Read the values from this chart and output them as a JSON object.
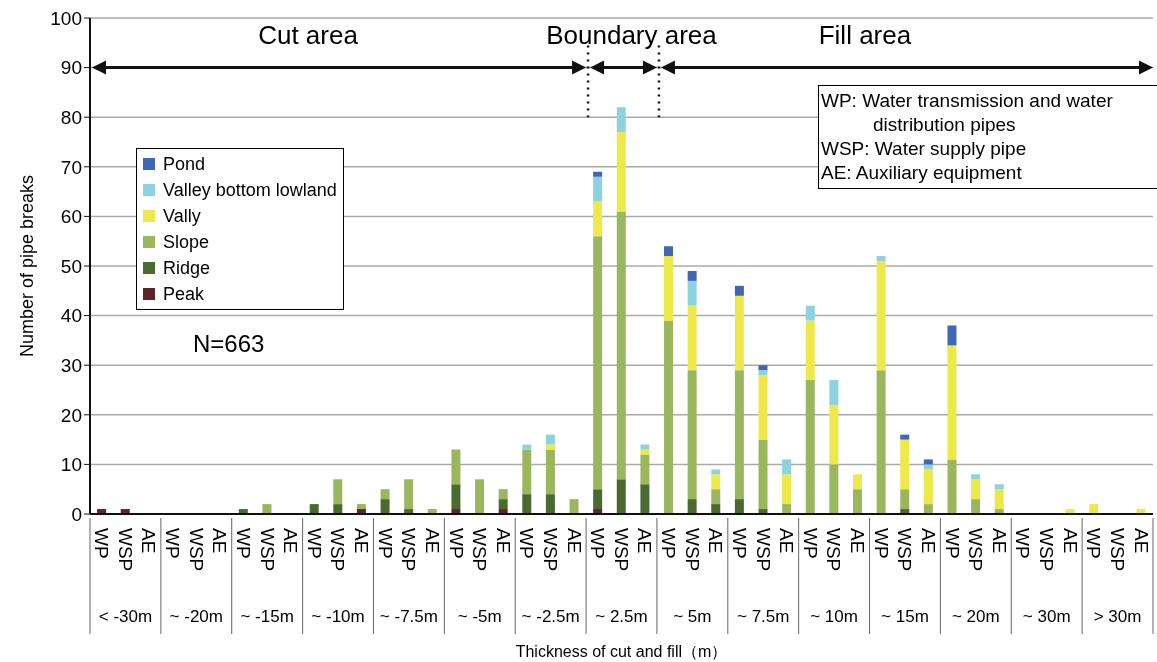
{
  "chart_data": {
    "type": "bar",
    "stacked": true,
    "ylabel": "Number of pipe breaks",
    "xlabel": "Thickness of cut and fill（m）",
    "categories": [
      "WP",
      "WSP",
      "AE",
      "WP",
      "WSP",
      "AE",
      "WP",
      "WSP",
      "AE",
      "WP",
      "WSP",
      "AE",
      "WP",
      "WSP",
      "AE",
      "WP",
      "WSP",
      "AE",
      "WP",
      "WSP",
      "AE",
      "WP",
      "WSP",
      "AE",
      "WP",
      "WSP",
      "AE",
      "WP",
      "WSP",
      "AE",
      "WP",
      "WSP",
      "AE",
      "WP",
      "WSP",
      "AE",
      "WP",
      "WSP",
      "AE",
      "WP",
      "WSP",
      "AE",
      "WP",
      "WSP",
      "AE"
    ],
    "series": [
      {
        "name": "Peak",
        "color": "#5e2427",
        "values": [
          1,
          1,
          0,
          0,
          0,
          0,
          0,
          0,
          0,
          0,
          0,
          1,
          0,
          0,
          0,
          1,
          0,
          1,
          0,
          0,
          0,
          1,
          0,
          0,
          0,
          0,
          0,
          0,
          0,
          0,
          0,
          0,
          0,
          0,
          0,
          0,
          0,
          0,
          0,
          0,
          0,
          0,
          0,
          0,
          0
        ]
      },
      {
        "name": "Ridge",
        "color": "#4a6a30",
        "values": [
          0,
          0,
          0,
          0,
          0,
          0,
          1,
          0,
          0,
          2,
          2,
          0,
          3,
          1,
          0,
          5,
          0,
          2,
          4,
          4,
          0,
          4,
          7,
          6,
          0,
          3,
          2,
          3,
          1,
          0,
          0,
          0,
          0,
          0,
          1,
          0,
          0,
          0,
          0,
          0,
          0,
          0,
          0,
          0,
          0
        ]
      },
      {
        "name": "Slope",
        "color": "#9bb75d",
        "values": [
          0,
          0,
          0,
          0,
          0,
          0,
          0,
          2,
          0,
          0,
          5,
          1,
          2,
          6,
          1,
          7,
          7,
          2,
          9,
          9,
          3,
          51,
          54,
          6,
          39,
          26,
          3,
          26,
          14,
          2,
          27,
          10,
          5,
          29,
          4,
          2,
          11,
          3,
          1,
          0,
          0,
          0,
          0,
          0,
          0
        ]
      },
      {
        "name": "Vally",
        "color": "#ede94a",
        "values": [
          0,
          0,
          0,
          0,
          0,
          0,
          0,
          0,
          0,
          0,
          0,
          0,
          0,
          0,
          0,
          0,
          0,
          0,
          0,
          1,
          0,
          7,
          16,
          1,
          13,
          13,
          3,
          15,
          13,
          6,
          12,
          12,
          3,
          22,
          10,
          7,
          23,
          4,
          4,
          0,
          0,
          1,
          2,
          0,
          1
        ]
      },
      {
        "name": "Valley bottom lowland",
        "color": "#8dd3df",
        "values": [
          0,
          0,
          0,
          0,
          0,
          0,
          0,
          0,
          0,
          0,
          0,
          0,
          0,
          0,
          0,
          0,
          0,
          0,
          1,
          2,
          0,
          5,
          5,
          1,
          0,
          5,
          1,
          0,
          1,
          3,
          3,
          5,
          0,
          1,
          0,
          1,
          0,
          1,
          1,
          0,
          0,
          0,
          0,
          0,
          0
        ]
      },
      {
        "name": "Pond",
        "color": "#3f67b5",
        "values": [
          0,
          0,
          0,
          0,
          0,
          0,
          0,
          0,
          0,
          0,
          0,
          0,
          0,
          0,
          0,
          0,
          0,
          0,
          0,
          0,
          0,
          1,
          0,
          0,
          2,
          2,
          0,
          2,
          1,
          0,
          0,
          0,
          0,
          0,
          1,
          1,
          4,
          0,
          0,
          0,
          0,
          0,
          0,
          0,
          0
        ]
      }
    ],
    "ylim": [
      0,
      100
    ],
    "yticks": [
      0,
      10,
      20,
      30,
      40,
      50,
      60,
      70,
      80,
      90,
      100
    ],
    "grid": "y",
    "legend": "left",
    "annotations": [
      "Cut area",
      "Boundary area",
      "Fill area",
      "N=663",
      "WP: Water transmission and water distribution pipes",
      "WSP: Water supply pipe",
      "AE: Auxiliary equipment",
      "< -30m",
      "~ -20m",
      "~ -15m",
      "~ -10m",
      "~ -7.5m",
      "~ -5m",
      "~ -2.5m",
      "~ 2.5m",
      "~ 5m",
      "~ 7.5m",
      "~ 10m",
      "~ 15m",
      "~ 20m",
      "~ 30m",
      "> 30m"
    ]
  }
}
